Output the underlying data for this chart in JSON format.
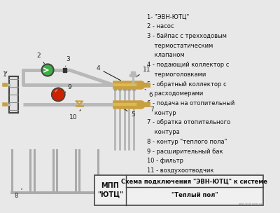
{
  "bg_color": "#e8e8e8",
  "diagram_bg": "#e8e8e8",
  "pipe_color": "#b8b8b8",
  "pipe_dark": "#888888",
  "brass_color": "#c8a040",
  "brass_dark": "#a07828",
  "green_color": "#3cb043",
  "red_color": "#cc2200",
  "black": "#222222",
  "gray_dev": "#cccccc",
  "outline": "#444444",
  "text_color": "#111111",
  "label_color": "#222222",
  "legend": [
    "1- \"ЭВН-ЮТЦ\"",
    "2 - насос",
    "3 - байпас с трехходовым",
    "    термостатическим",
    "    клапаном",
    "4 - подающий коллектор с",
    "    термоголовками",
    "5 - обратный коллектор с",
    "    расходомерами",
    "6 - подача на отопительный",
    "    контур",
    "7 - обратка отопительного",
    "    контура",
    "8 - контур \"теплого пола\"",
    "9 - расширительный бак",
    "10 - фильтр",
    "11 - воздухоотводчик"
  ],
  "table_title": "Схема подключения \"ЭВН-ЮТЦ\" к системе",
  "table_title2": "\"Теплый пол\"",
  "table_company": "МПП\n\"ЮТЦ\""
}
